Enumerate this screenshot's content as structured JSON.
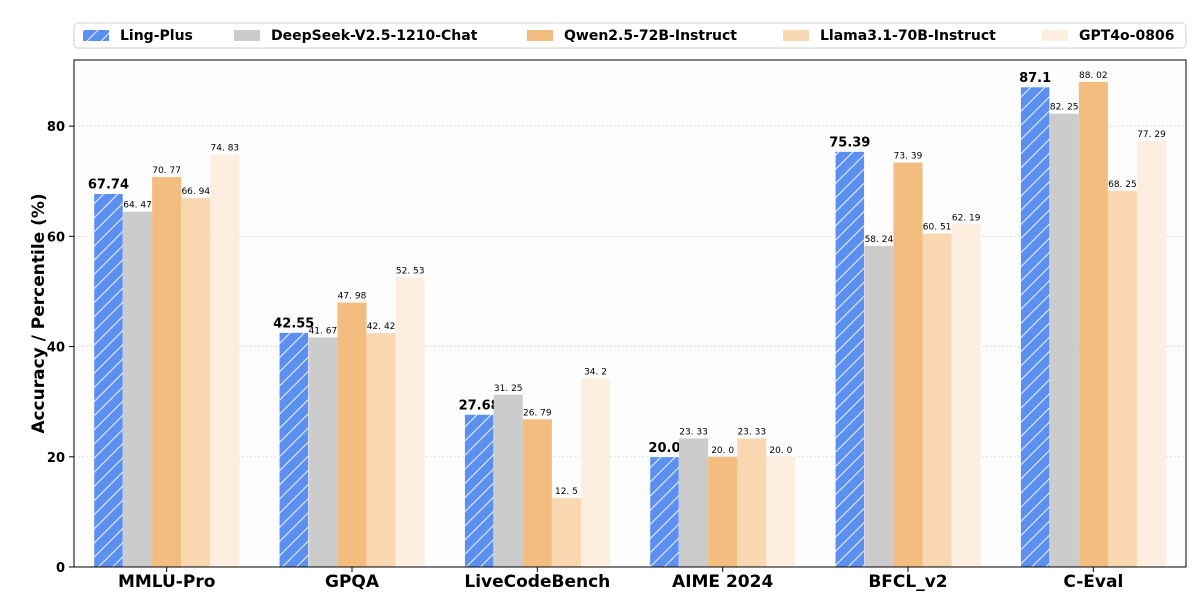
{
  "chart_data": {
    "type": "bar",
    "categories": [
      "MMLU-Pro",
      "GPQA",
      "LiveCodeBench",
      "AIME 2024",
      "BFCL_v2",
      "C-Eval"
    ],
    "series": [
      {
        "name": "Ling-Plus",
        "values": [
          67.74,
          42.55,
          27.68,
          20.0,
          75.39,
          87.1
        ],
        "labels": [
          "67.74",
          "42.55",
          "27.68",
          "20.0",
          "75.39",
          "87.1"
        ],
        "color": "#5b8ff0",
        "hatch": true,
        "bold_labels": true
      },
      {
        "name": "DeepSeek-V2.5-1210-Chat",
        "values": [
          64.47,
          41.67,
          31.25,
          23.33,
          58.24,
          82.25
        ],
        "labels": [
          "64. 47",
          "41. 67",
          "31. 25",
          "23. 33",
          "58. 24",
          "82. 25"
        ],
        "color": "#cccccc"
      },
      {
        "name": "Qwen2.5-72B-Instruct",
        "values": [
          70.77,
          47.98,
          26.79,
          20.0,
          73.39,
          88.02
        ],
        "labels": [
          "70. 77",
          "47. 98",
          "26. 79",
          "20. 0",
          "73. 39",
          "88. 02"
        ],
        "color": "#f2bd7e"
      },
      {
        "name": "Llama3.1-70B-Instruct",
        "values": [
          66.94,
          42.42,
          12.5,
          23.33,
          60.51,
          68.25
        ],
        "labels": [
          "66. 94",
          "42. 42",
          "12. 5",
          "23. 33",
          "60. 51",
          "68. 25"
        ],
        "color": "#f9d7b0"
      },
      {
        "name": "GPT4o-0806",
        "values": [
          74.83,
          52.53,
          34.2,
          20.0,
          62.19,
          77.29
        ],
        "labels": [
          "74. 83",
          "52. 53",
          "34. 2",
          "20. 0",
          "62. 19",
          "77. 29"
        ],
        "color": "#fdeee0"
      }
    ],
    "ylabel": "Accuracy / Percentile (%)",
    "ylim": [
      0,
      92
    ],
    "yticks": [
      "0",
      "20",
      "40",
      "60",
      "80"
    ],
    "grid": true,
    "legend_position": "top"
  }
}
